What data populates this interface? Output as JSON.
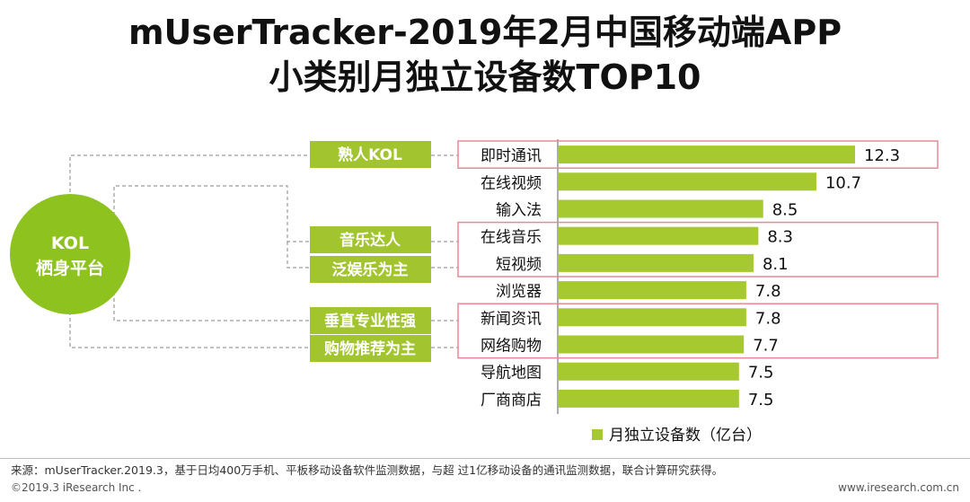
{
  "title_line1": "mUserTracker-2019年2月中国移动端APP",
  "title_line2": "小类别月独立设备数TOP10",
  "kol_circle": {
    "line1": "KOL",
    "line2": "栖身平台"
  },
  "tags": [
    "熟人KOL",
    "音乐达人",
    "泛娱乐为主",
    "垂直专业性强",
    "购物推荐为主"
  ],
  "chart_data": {
    "type": "bar",
    "orientation": "horizontal",
    "categories": [
      "即时通讯",
      "在线视频",
      "输入法",
      "在线音乐",
      "短视频",
      "浏览器",
      "新闻资讯",
      "网络购物",
      "导航地图",
      "厂商商店"
    ],
    "values": [
      12.3,
      10.7,
      8.5,
      8.3,
      8.1,
      7.8,
      7.8,
      7.7,
      7.5,
      7.5
    ],
    "value_labels": [
      "12.3",
      "10.7",
      "8.5",
      "8.3",
      "8.1",
      "7.8",
      "7.8",
      "7.7",
      "7.5",
      "7.5"
    ],
    "series_name": "月独立设备数（亿台）",
    "xlim": [
      0,
      15
    ],
    "highlight_groups": [
      [
        "即时通讯"
      ],
      [
        "在线音乐",
        "短视频"
      ],
      [
        "新闻资讯",
        "网络购物"
      ]
    ]
  },
  "footer": {
    "source": "来源：mUserTracker.2019.3，基于日均400万手机、平板移动设备软件监测数据，与超 过1亿移动设备的通讯监测数据，联合计算研究获得。",
    "copyright": "©2019.3 iResearch Inc .",
    "website": "www.iresearch.com.cn"
  },
  "colors": {
    "bar": "#a6c92f",
    "tag": "#a2c52f",
    "circle": "#8dc21f",
    "highlight_border": "#e58a95",
    "connector": "#9a9a9a"
  }
}
